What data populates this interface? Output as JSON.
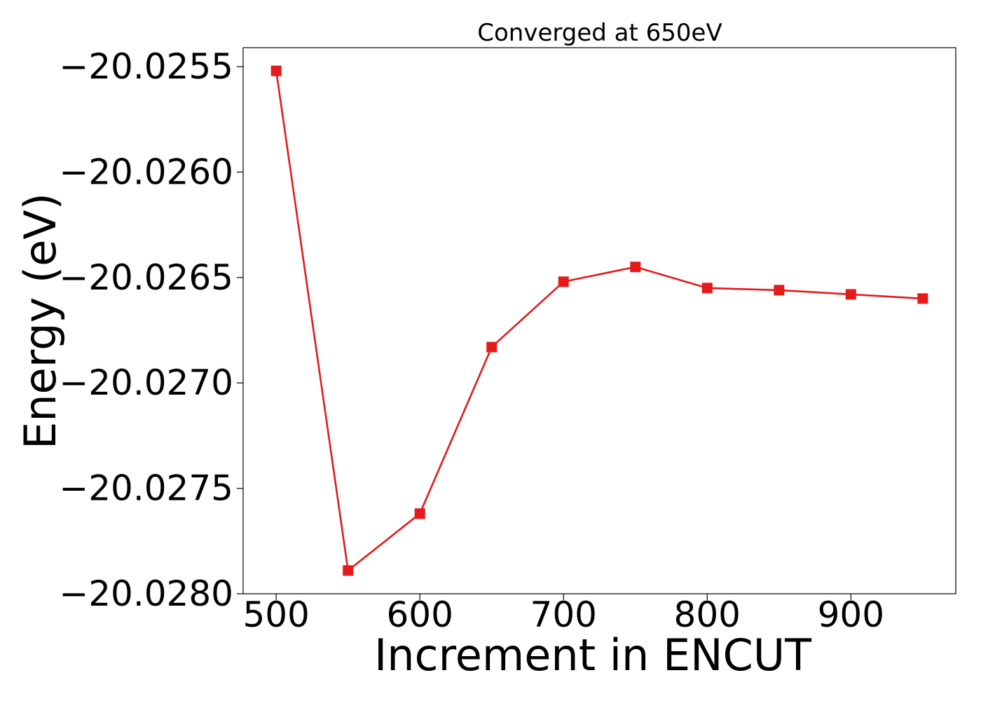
{
  "chart_data": {
    "type": "line",
    "title": "Converged at 650eV",
    "xlabel": "Increment in ENCUT",
    "ylabel": "Energy (eV)",
    "x": [
      500,
      550,
      600,
      650,
      700,
      750,
      800,
      850,
      900,
      950
    ],
    "series": [
      {
        "values": [
          -20.02552,
          -20.02789,
          -20.02762,
          -20.02683,
          -20.02652,
          -20.02645,
          -20.02655,
          -20.02656,
          -20.02658,
          -20.0266
        ],
        "color": "#e41a1c",
        "marker": "square"
      }
    ],
    "xlim": [
      477,
      973
    ],
    "ylim": [
      -20.028,
      -20.02541
    ],
    "xticks": [
      500,
      600,
      700,
      800,
      900
    ],
    "xtick_labels": [
      "500",
      "600",
      "700",
      "800",
      "900"
    ],
    "yticks": [
      -20.028,
      -20.0275,
      -20.027,
      -20.0265,
      -20.026,
      -20.0255
    ],
    "ytick_labels": [
      "−20.0280",
      "−20.0275",
      "−20.0270",
      "−20.0265",
      "−20.0260",
      "−20.0255"
    ],
    "grid": false,
    "legend": false
  }
}
